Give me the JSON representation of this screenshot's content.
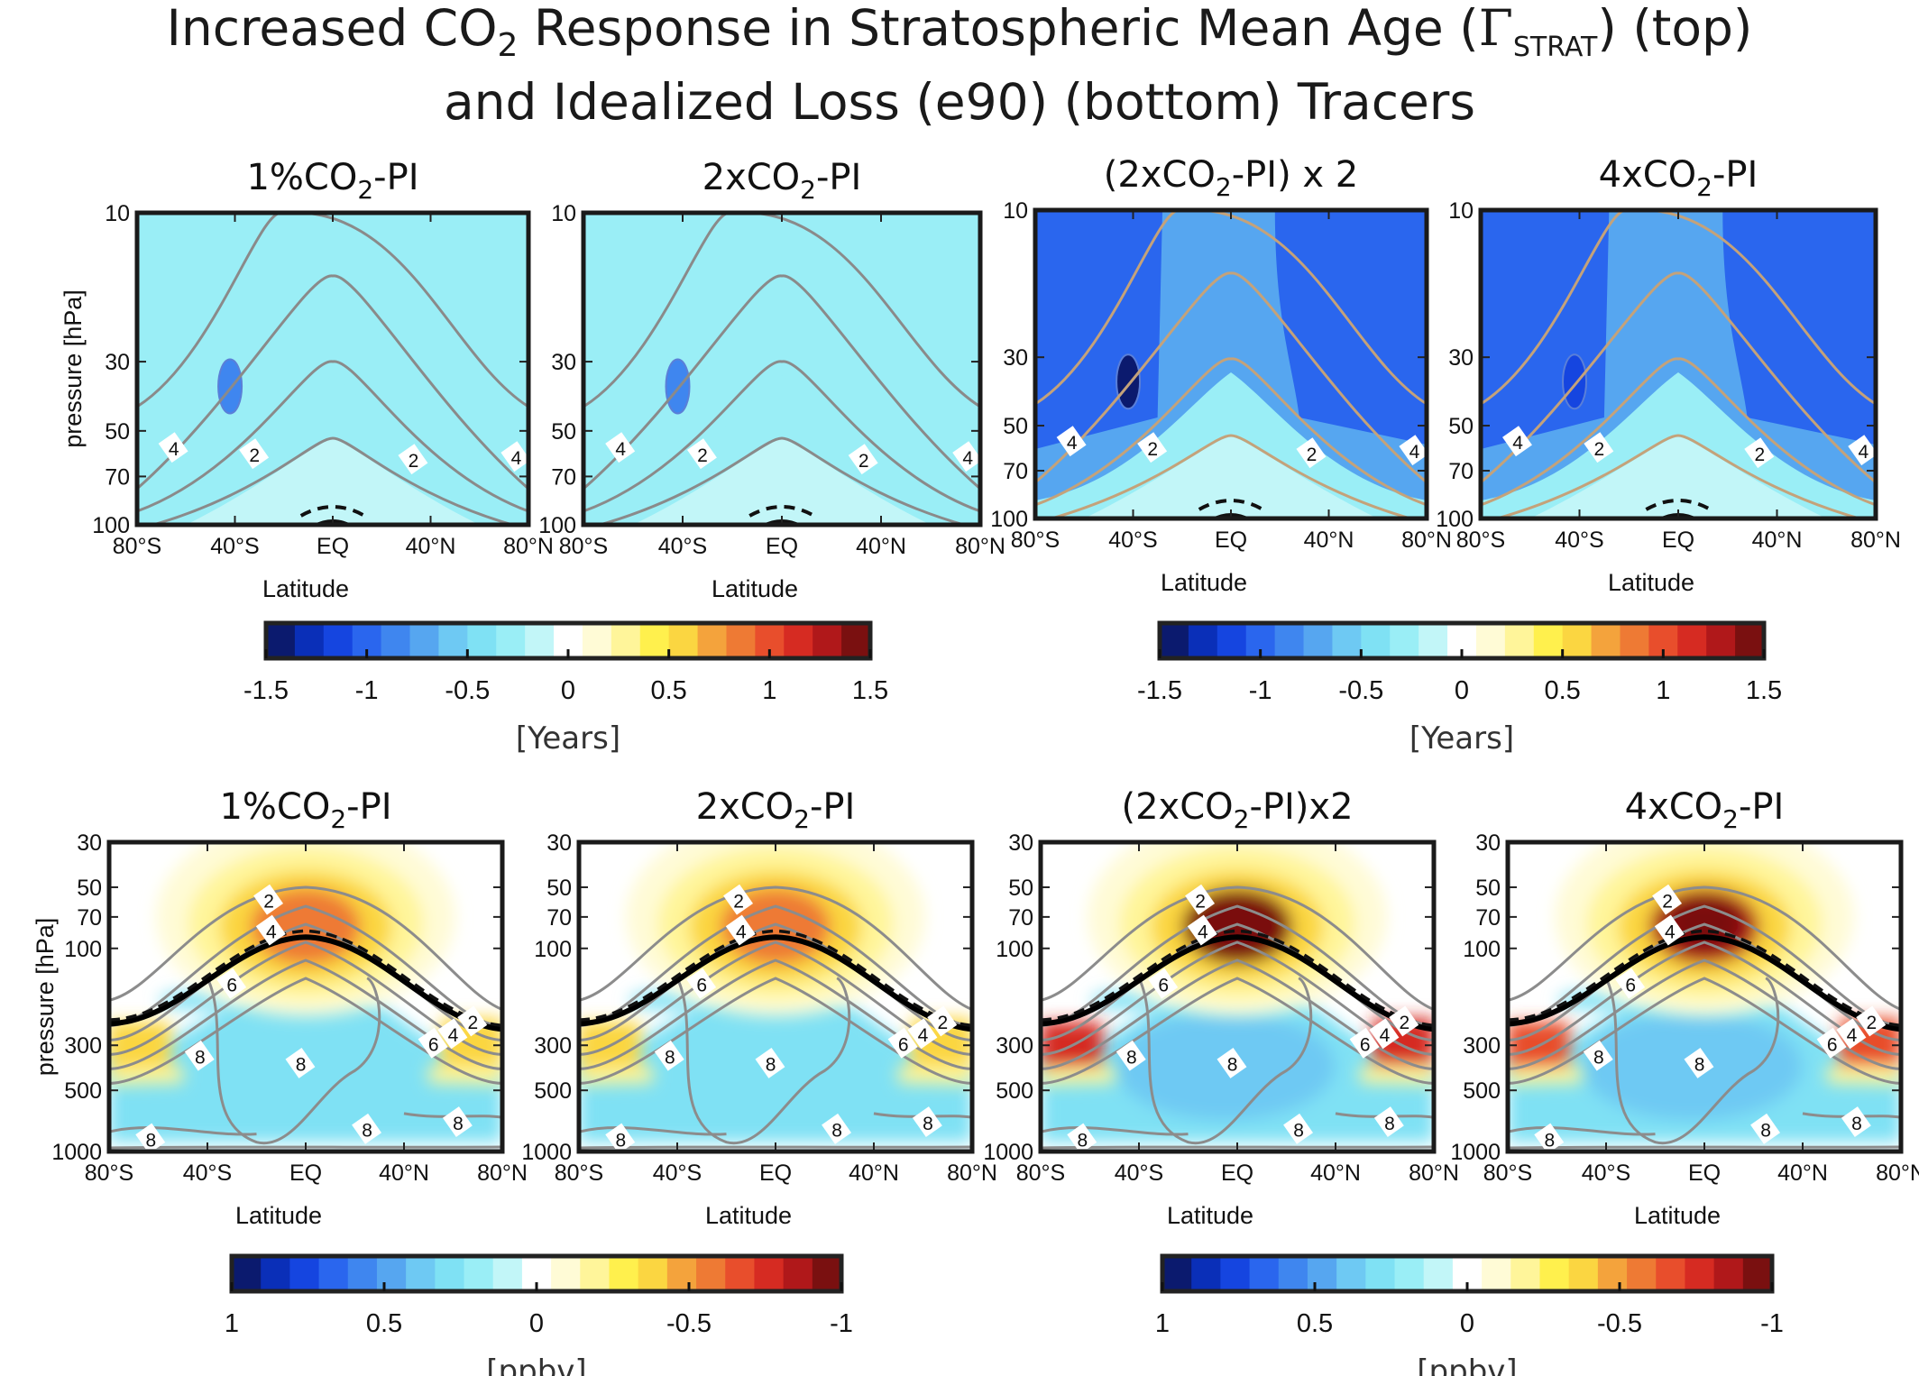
{
  "figure": {
    "title_line1": "Increased CO",
    "title_sub2": "2",
    "title_line1_mid": " Response in Stratospheric Mean Age (",
    "title_gamma": "Γ",
    "title_strat": "STRAT",
    "title_line1_end": ") (top)",
    "title_line2": "and Idealized Loss (e90) (bottom) Tracers"
  },
  "chart_data": [
    {
      "type": "heatmap",
      "row": "top",
      "title_a": "1%CO",
      "title_sub": "2",
      "title_b": "-PI",
      "field": "mean-age-response",
      "response_years": -0.35,
      "response_core": -0.9,
      "ylabel": "pressure [hPa]",
      "xlabel": "Latitude",
      "yticks": [
        "10",
        "30",
        "50",
        "70",
        "100"
      ],
      "xticks": [
        "80°S",
        "40°S",
        "EQ",
        "40°N",
        "80°N"
      ],
      "xlim": [
        -80,
        80
      ],
      "ylim_hPa": [
        100,
        10
      ],
      "contour_labels": [
        "4",
        "2",
        "2",
        "4"
      ]
    },
    {
      "type": "heatmap",
      "row": "top",
      "title_a": "2xCO",
      "title_sub": "2",
      "title_b": "-PI",
      "field": "mean-age-response",
      "response_years": -0.35,
      "response_core": -0.9,
      "ylabel": "",
      "xlabel": "Latitude",
      "yticks": [
        "10",
        "30",
        "50",
        "70",
        "100"
      ],
      "xticks": [
        "80°S",
        "40°S",
        "EQ",
        "40°N",
        "80°N"
      ],
      "xlim": [
        -80,
        80
      ],
      "ylim_hPa": [
        100,
        10
      ],
      "contour_labels": [
        "4",
        "2",
        "2",
        "4"
      ]
    },
    {
      "type": "heatmap",
      "row": "top",
      "title_a": "(2xCO",
      "title_sub": "2",
      "title_b": "-PI) x 2",
      "field": "mean-age-response",
      "response_years": -1.1,
      "response_core": -1.45,
      "ylabel": "",
      "xlabel": "Latitude",
      "yticks": [
        "10",
        "30",
        "50",
        "70",
        "100"
      ],
      "xticks": [
        "80°S",
        "40°S",
        "EQ",
        "40°N",
        "80°N"
      ],
      "xlim": [
        -80,
        80
      ],
      "ylim_hPa": [
        100,
        10
      ],
      "contour_labels": [
        "4",
        "2",
        "2",
        "4"
      ]
    },
    {
      "type": "heatmap",
      "row": "top",
      "title_a": "4xCO",
      "title_sub": "2",
      "title_b": "-PI",
      "field": "mean-age-response",
      "response_years": -1.1,
      "response_core": -1.2,
      "ylabel": "",
      "xlabel": "Latitude",
      "yticks": [
        "10",
        "30",
        "50",
        "70",
        "100"
      ],
      "xticks": [
        "80°S",
        "40°S",
        "EQ",
        "40°N",
        "80°N"
      ],
      "xlim": [
        -80,
        80
      ],
      "ylim_hPa": [
        100,
        10
      ],
      "contour_labels": [
        "4",
        "2",
        "2",
        "4"
      ]
    },
    {
      "type": "heatmap",
      "row": "bottom",
      "title_a": "1%CO",
      "title_sub": "2",
      "title_b": "-PI",
      "field": "e90-response",
      "tropopause_peak_ppbv": -0.55,
      "troposphere_ppbv": 0.35,
      "ylabel": "pressure [hPa]",
      "xlabel": "Latitude",
      "yticks": [
        "30",
        "50",
        "70",
        "100",
        "300",
        "500",
        "1000"
      ],
      "xticks": [
        "80°S",
        "40°S",
        "EQ",
        "40°N",
        "80°N"
      ],
      "xlim": [
        -80,
        80
      ],
      "ylim_hPa": [
        1000,
        30
      ],
      "contour_labels": [
        "2",
        "4",
        "6",
        "8",
        "8",
        "8",
        "8",
        "2",
        "4",
        "6"
      ]
    },
    {
      "type": "heatmap",
      "row": "bottom",
      "title_a": "2xCO",
      "title_sub": "2",
      "title_b": "-PI",
      "field": "e90-response",
      "tropopause_peak_ppbv": -0.55,
      "troposphere_ppbv": 0.35,
      "ylabel": "",
      "xlabel": "Latitude",
      "yticks": [
        "30",
        "50",
        "70",
        "100",
        "300",
        "500",
        "1000"
      ],
      "xticks": [
        "80°S",
        "40°S",
        "EQ",
        "40°N",
        "80°N"
      ],
      "xlim": [
        -80,
        80
      ],
      "ylim_hPa": [
        1000,
        30
      ],
      "contour_labels": [
        "2",
        "4",
        "6",
        "8",
        "8",
        "8",
        "8",
        "2",
        "4",
        "6"
      ]
    },
    {
      "type": "heatmap",
      "row": "bottom",
      "title_a": "(2xCO",
      "title_sub": "2",
      "title_b": "-PI)x2",
      "field": "e90-response",
      "tropopause_peak_ppbv": -0.95,
      "troposphere_ppbv": 0.45,
      "ylabel": "",
      "xlabel": "Latitude",
      "yticks": [
        "30",
        "50",
        "70",
        "100",
        "300",
        "500",
        "1000"
      ],
      "xticks": [
        "80°S",
        "40°S",
        "EQ",
        "40°N",
        "80°N"
      ],
      "xlim": [
        -80,
        80
      ],
      "ylim_hPa": [
        1000,
        30
      ],
      "contour_labels": [
        "2",
        "4",
        "6",
        "8",
        "8",
        "8",
        "8",
        "2",
        "4",
        "6"
      ]
    },
    {
      "type": "heatmap",
      "row": "bottom",
      "title_a": "4xCO",
      "title_sub": "2",
      "title_b": "-PI",
      "field": "e90-response",
      "tropopause_peak_ppbv": -0.9,
      "troposphere_ppbv": 0.45,
      "ylabel": "",
      "xlabel": "Latitude",
      "yticks": [
        "30",
        "50",
        "70",
        "100",
        "300",
        "500",
        "1000"
      ],
      "xticks": [
        "80°S",
        "40°S",
        "EQ",
        "40°N",
        "80°N"
      ],
      "xlim": [
        -80,
        80
      ],
      "ylim_hPa": [
        1000,
        30
      ],
      "contour_labels": [
        "2",
        "4",
        "6",
        "8",
        "8",
        "8",
        "8",
        "2",
        "4",
        "6"
      ]
    }
  ],
  "colorbars": [
    {
      "ticks": [
        "-1.5",
        "-1",
        "-0.5",
        "0",
        "0.5",
        "1",
        "1.5"
      ],
      "unit": "[Years]",
      "direction": "blue-to-red"
    },
    {
      "ticks": [
        "-1.5",
        "-1",
        "-0.5",
        "0",
        "0.5",
        "1",
        "1.5"
      ],
      "unit": "[Years]",
      "direction": "blue-to-red"
    },
    {
      "ticks": [
        "1",
        "0.5",
        "0",
        "-0.5",
        "-1"
      ],
      "unit": "[ppbv]",
      "direction": "blue-to-red"
    },
    {
      "ticks": [
        "1",
        "0.5",
        "0",
        "-0.5",
        "-1"
      ],
      "unit": "[ppbv]",
      "direction": "blue-to-red"
    }
  ],
  "palette": [
    "#0b1a6e",
    "#0a2fb8",
    "#1545e0",
    "#2a66ee",
    "#3f86ef",
    "#56a6f0",
    "#6ec9f3",
    "#7fe1f4",
    "#9aeef6",
    "#c2f6f8",
    "#ffffff",
    "#fffbd6",
    "#fff59a",
    "#fff04d",
    "#fbd641",
    "#f4a33c",
    "#ee7a34",
    "#e84e2c",
    "#d62b22",
    "#b0181a",
    "#7a1010"
  ]
}
